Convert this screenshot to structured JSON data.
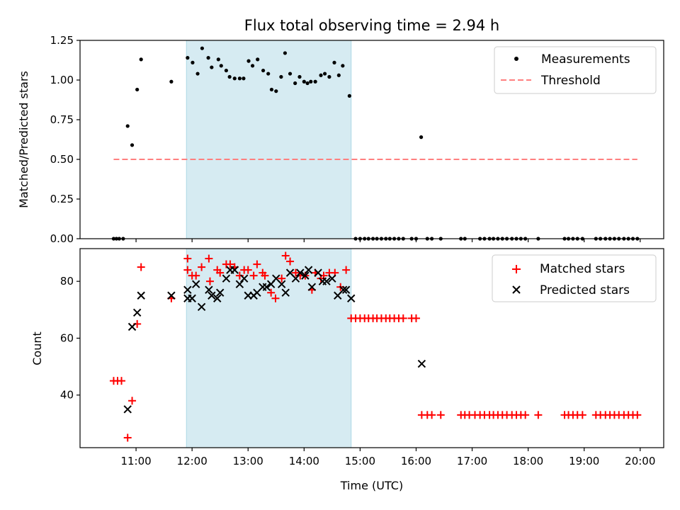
{
  "chart_data": {
    "title": "Flux total observing time = 2.94 h",
    "xlabel": "Time (UTC)",
    "x_unit": "hours UTC",
    "xlim": [
      10.0,
      20.42
    ],
    "x_ticks": [
      11,
      12,
      13,
      14,
      15,
      16,
      17,
      18,
      19,
      20
    ],
    "x_tick_labels": [
      "11:00",
      "12:00",
      "13:00",
      "14:00",
      "15:00",
      "16:00",
      "17:00",
      "18:00",
      "19:00",
      "20:00"
    ],
    "shaded_span": [
      11.9,
      14.84
    ],
    "colors": {
      "shade": "#add8e6",
      "matched": "#ff0000",
      "predicted": "#000000",
      "threshold": "#ff7f7f",
      "measurements": "#000000"
    },
    "top": {
      "type": "scatter",
      "ylabel": "Matched/Predicted stars",
      "ylim": [
        0.0,
        1.25
      ],
      "y_ticks": [
        0.0,
        0.25,
        0.5,
        0.75,
        1.0,
        1.25
      ],
      "y_tick_labels": [
        "0.00",
        "0.25",
        "0.50",
        "0.75",
        "1.00",
        "1.25"
      ],
      "legend_position": "top-right",
      "series": [
        {
          "name": "Measurements",
          "marker": "dot",
          "points": [
            [
              10.6,
              0.0
            ],
            [
              10.65,
              0.0
            ],
            [
              10.7,
              0.0
            ],
            [
              10.77,
              0.0
            ],
            [
              10.85,
              0.71
            ],
            [
              10.93,
              0.59
            ],
            [
              11.02,
              0.94
            ],
            [
              11.09,
              1.13
            ],
            [
              11.63,
              0.99
            ],
            [
              11.92,
              1.14
            ],
            [
              12.01,
              1.11
            ],
            [
              12.1,
              1.04
            ],
            [
              12.18,
              1.2
            ],
            [
              12.29,
              1.14
            ],
            [
              12.35,
              1.08
            ],
            [
              12.47,
              1.13
            ],
            [
              12.52,
              1.09
            ],
            [
              12.61,
              1.06
            ],
            [
              12.67,
              1.02
            ],
            [
              12.76,
              1.01
            ],
            [
              12.85,
              1.01
            ],
            [
              12.92,
              1.01
            ],
            [
              13.01,
              1.12
            ],
            [
              13.08,
              1.09
            ],
            [
              13.17,
              1.13
            ],
            [
              13.27,
              1.06
            ],
            [
              13.36,
              1.04
            ],
            [
              13.42,
              0.94
            ],
            [
              13.5,
              0.93
            ],
            [
              13.59,
              1.02
            ],
            [
              13.66,
              1.17
            ],
            [
              13.75,
              1.04
            ],
            [
              13.84,
              0.98
            ],
            [
              13.92,
              1.02
            ],
            [
              14.0,
              0.99
            ],
            [
              14.06,
              0.98
            ],
            [
              14.12,
              0.99
            ],
            [
              14.2,
              0.99
            ],
            [
              14.3,
              1.03
            ],
            [
              14.37,
              1.04
            ],
            [
              14.45,
              1.02
            ],
            [
              14.54,
              1.11
            ],
            [
              14.62,
              1.03
            ],
            [
              14.69,
              1.09
            ],
            [
              14.81,
              0.9
            ],
            [
              14.92,
              0.0
            ],
            [
              15.0,
              0.0
            ],
            [
              15.08,
              0.0
            ],
            [
              15.15,
              0.0
            ],
            [
              15.23,
              0.0
            ],
            [
              15.3,
              0.0
            ],
            [
              15.38,
              0.0
            ],
            [
              15.46,
              0.0
            ],
            [
              15.53,
              0.0
            ],
            [
              15.61,
              0.0
            ],
            [
              15.69,
              0.0
            ],
            [
              15.77,
              0.0
            ],
            [
              15.92,
              0.0
            ],
            [
              16.0,
              0.0
            ],
            [
              16.09,
              0.64
            ],
            [
              16.2,
              0.0
            ],
            [
              16.28,
              0.0
            ],
            [
              16.44,
              0.0
            ],
            [
              16.8,
              0.0
            ],
            [
              16.87,
              0.0
            ],
            [
              17.14,
              0.0
            ],
            [
              17.22,
              0.0
            ],
            [
              17.31,
              0.0
            ],
            [
              17.38,
              0.0
            ],
            [
              17.46,
              0.0
            ],
            [
              17.54,
              0.0
            ],
            [
              17.62,
              0.0
            ],
            [
              17.71,
              0.0
            ],
            [
              17.79,
              0.0
            ],
            [
              17.87,
              0.0
            ],
            [
              17.95,
              0.0
            ],
            [
              18.18,
              0.0
            ],
            [
              18.65,
              0.0
            ],
            [
              18.72,
              0.0
            ],
            [
              18.8,
              0.0
            ],
            [
              18.88,
              0.0
            ],
            [
              18.97,
              0.0
            ],
            [
              19.21,
              0.0
            ],
            [
              19.29,
              0.0
            ],
            [
              19.38,
              0.0
            ],
            [
              19.46,
              0.0
            ],
            [
              19.54,
              0.0
            ],
            [
              19.62,
              0.0
            ],
            [
              19.71,
              0.0
            ],
            [
              19.79,
              0.0
            ],
            [
              19.87,
              0.0
            ],
            [
              19.95,
              0.0
            ]
          ]
        },
        {
          "name": "Threshold",
          "style": "dashed",
          "x": [
            10.6,
            19.95
          ],
          "y": [
            0.5,
            0.5
          ]
        }
      ]
    },
    "bottom": {
      "type": "scatter",
      "ylabel": "Count",
      "ylim": [
        21.5,
        91.5
      ],
      "y_ticks": [
        40,
        60,
        80
      ],
      "y_tick_labels": [
        "40",
        "60",
        "80"
      ],
      "legend_position": "top-right",
      "series": [
        {
          "name": "Matched stars",
          "marker": "plus",
          "points": [
            [
              10.6,
              45
            ],
            [
              10.67,
              45
            ],
            [
              10.74,
              45
            ],
            [
              10.85,
              25
            ],
            [
              10.93,
              38
            ],
            [
              11.02,
              65
            ],
            [
              11.09,
              85
            ],
            [
              11.63,
              74
            ],
            [
              11.92,
              88
            ],
            [
              11.92,
              84
            ],
            [
              12.0,
              82
            ],
            [
              12.07,
              82
            ],
            [
              12.17,
              85
            ],
            [
              12.3,
              88
            ],
            [
              12.32,
              80
            ],
            [
              12.45,
              84
            ],
            [
              12.5,
              83
            ],
            [
              12.61,
              86
            ],
            [
              12.68,
              86
            ],
            [
              12.76,
              85
            ],
            [
              12.85,
              82
            ],
            [
              12.93,
              84
            ],
            [
              13.0,
              84
            ],
            [
              13.1,
              82
            ],
            [
              13.16,
              86
            ],
            [
              13.26,
              83
            ],
            [
              13.3,
              82
            ],
            [
              13.41,
              76
            ],
            [
              13.49,
              74
            ],
            [
              13.6,
              81
            ],
            [
              13.67,
              89
            ],
            [
              13.75,
              87
            ],
            [
              13.85,
              83
            ],
            [
              13.93,
              82
            ],
            [
              14.02,
              82
            ],
            [
              14.14,
              77
            ],
            [
              14.2,
              83
            ],
            [
              14.3,
              81
            ],
            [
              14.35,
              82
            ],
            [
              14.45,
              83
            ],
            [
              14.55,
              83
            ],
            [
              14.65,
              78
            ],
            [
              14.75,
              84
            ],
            [
              14.84,
              67
            ],
            [
              14.92,
              67
            ],
            [
              15.0,
              67
            ],
            [
              15.08,
              67
            ],
            [
              15.15,
              67
            ],
            [
              15.23,
              67
            ],
            [
              15.3,
              67
            ],
            [
              15.38,
              67
            ],
            [
              15.46,
              67
            ],
            [
              15.53,
              67
            ],
            [
              15.61,
              67
            ],
            [
              15.69,
              67
            ],
            [
              15.77,
              67
            ],
            [
              15.92,
              67
            ],
            [
              16.0,
              67
            ],
            [
              16.1,
              33
            ],
            [
              16.2,
              33
            ],
            [
              16.28,
              33
            ],
            [
              16.44,
              33
            ],
            [
              16.8,
              33
            ],
            [
              16.87,
              33
            ],
            [
              16.95,
              33
            ],
            [
              17.05,
              33
            ],
            [
              17.14,
              33
            ],
            [
              17.22,
              33
            ],
            [
              17.31,
              33
            ],
            [
              17.38,
              33
            ],
            [
              17.46,
              33
            ],
            [
              17.54,
              33
            ],
            [
              17.62,
              33
            ],
            [
              17.71,
              33
            ],
            [
              17.79,
              33
            ],
            [
              17.87,
              33
            ],
            [
              17.95,
              33
            ],
            [
              18.18,
              33
            ],
            [
              18.65,
              33
            ],
            [
              18.72,
              33
            ],
            [
              18.8,
              33
            ],
            [
              18.88,
              33
            ],
            [
              18.97,
              33
            ],
            [
              19.21,
              33
            ],
            [
              19.29,
              33
            ],
            [
              19.38,
              33
            ],
            [
              19.46,
              33
            ],
            [
              19.54,
              33
            ],
            [
              19.62,
              33
            ],
            [
              19.71,
              33
            ],
            [
              19.79,
              33
            ],
            [
              19.87,
              33
            ],
            [
              19.95,
              33
            ]
          ]
        },
        {
          "name": "Predicted stars",
          "marker": "x",
          "points": [
            [
              10.85,
              35
            ],
            [
              10.93,
              64
            ],
            [
              11.02,
              69
            ],
            [
              11.09,
              75
            ],
            [
              11.63,
              75
            ],
            [
              11.92,
              77
            ],
            [
              11.92,
              74
            ],
            [
              12.0,
              74
            ],
            [
              12.07,
              79
            ],
            [
              12.17,
              71
            ],
            [
              12.3,
              77
            ],
            [
              12.35,
              75
            ],
            [
              12.45,
              74
            ],
            [
              12.5,
              76
            ],
            [
              12.61,
              81
            ],
            [
              12.68,
              84
            ],
            [
              12.76,
              84
            ],
            [
              12.85,
              79
            ],
            [
              12.93,
              81
            ],
            [
              13.0,
              75
            ],
            [
              13.1,
              75
            ],
            [
              13.16,
              76
            ],
            [
              13.26,
              78
            ],
            [
              13.33,
              78
            ],
            [
              13.41,
              79
            ],
            [
              13.5,
              81
            ],
            [
              13.6,
              79
            ],
            [
              13.67,
              76
            ],
            [
              13.75,
              83
            ],
            [
              13.85,
              81
            ],
            [
              13.93,
              83
            ],
            [
              14.02,
              82
            ],
            [
              14.08,
              84
            ],
            [
              14.14,
              78
            ],
            [
              14.25,
              83
            ],
            [
              14.33,
              80
            ],
            [
              14.4,
              80
            ],
            [
              14.5,
              81
            ],
            [
              14.6,
              75
            ],
            [
              14.7,
              77
            ],
            [
              14.75,
              77
            ],
            [
              14.84,
              74
            ],
            [
              16.1,
              51
            ]
          ]
        }
      ]
    }
  }
}
